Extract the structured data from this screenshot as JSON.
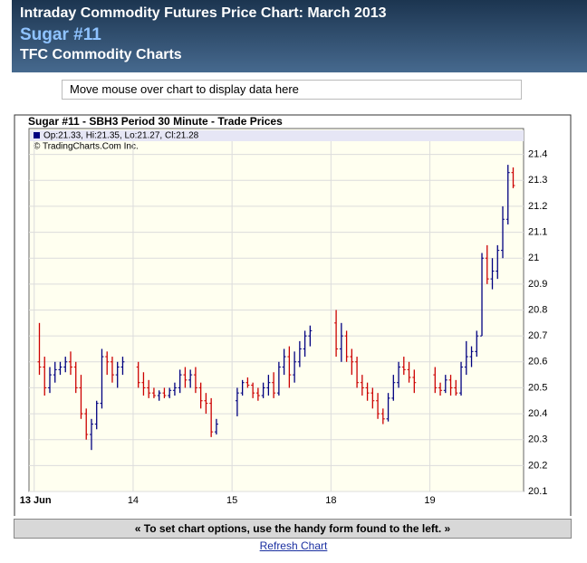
{
  "header": {
    "title": "Intraday Commodity Futures Price Chart: March 2013",
    "subtitle": "Sugar #11",
    "tagline": "TFC Commodity Charts"
  },
  "info_box": "Move mouse over chart to display data here",
  "chart_data": {
    "type": "ohlc",
    "title": "Sugar #11 - SBH3 Period 30 Minute - Trade Prices",
    "legend_text": "Op:21.33, Hi:21.35, Lo:21.27, Cl:21.28",
    "copyright": "© TradingCharts.Com Inc.",
    "x": [
      1,
      2,
      3,
      4,
      5,
      6,
      7,
      8,
      9,
      10,
      11,
      12,
      13,
      14,
      15,
      16,
      17,
      20,
      21,
      22,
      23,
      24,
      25,
      26,
      27,
      28,
      29,
      30,
      31,
      32,
      33,
      34,
      35,
      39,
      40,
      41,
      42,
      43,
      44,
      45,
      46,
      47,
      48,
      49,
      50,
      51,
      52,
      53,
      58,
      59,
      60,
      61,
      62,
      63,
      64,
      65,
      66,
      67,
      68,
      69,
      70,
      71,
      72,
      73,
      77,
      78,
      79,
      80,
      81,
      82,
      83,
      84,
      85,
      86,
      87,
      88,
      89,
      90,
      91,
      92
    ],
    "open": [
      20.6,
      20.58,
      20.5,
      20.55,
      20.57,
      20.58,
      20.6,
      20.58,
      20.5,
      20.4,
      20.32,
      20.36,
      20.44,
      20.62,
      20.6,
      20.55,
      20.58,
      20.58,
      20.52,
      20.5,
      20.48,
      20.47,
      20.48,
      20.47,
      20.49,
      20.5,
      20.55,
      20.53,
      20.55,
      20.5,
      20.45,
      20.44,
      20.33,
      20.45,
      20.48,
      20.52,
      20.51,
      20.48,
      20.47,
      20.5,
      20.52,
      20.48,
      20.58,
      20.62,
      20.55,
      20.6,
      20.65,
      20.7,
      20.75,
      20.65,
      20.7,
      20.62,
      20.6,
      20.52,
      20.5,
      20.48,
      20.45,
      20.4,
      20.38,
      20.46,
      20.52,
      20.58,
      20.57,
      20.54,
      20.55,
      20.5,
      20.49,
      20.53,
      20.5,
      20.48,
      20.58,
      20.62,
      20.64,
      20.7,
      21.0,
      20.92,
      20.95,
      21.03,
      21.15,
      21.33
    ],
    "high": [
      20.75,
      20.62,
      20.58,
      20.6,
      20.6,
      20.62,
      20.64,
      20.6,
      20.55,
      20.42,
      20.38,
      20.45,
      20.65,
      20.64,
      20.62,
      20.6,
      20.62,
      20.6,
      20.56,
      20.53,
      20.5,
      20.49,
      20.5,
      20.5,
      20.52,
      20.57,
      20.58,
      20.57,
      20.58,
      20.52,
      20.48,
      20.46,
      20.38,
      20.5,
      20.53,
      20.54,
      20.52,
      20.5,
      20.52,
      20.55,
      20.56,
      20.6,
      20.65,
      20.66,
      20.64,
      20.68,
      20.72,
      20.74,
      20.8,
      20.75,
      20.72,
      20.65,
      20.62,
      20.55,
      20.52,
      20.5,
      20.48,
      20.42,
      20.48,
      20.55,
      20.6,
      20.62,
      20.6,
      20.57,
      20.58,
      20.52,
      20.55,
      20.55,
      20.53,
      20.6,
      20.68,
      20.66,
      20.72,
      21.02,
      21.05,
      21.0,
      21.05,
      21.2,
      21.36,
      21.35
    ],
    "low": [
      20.55,
      20.47,
      20.48,
      20.52,
      20.55,
      20.56,
      20.55,
      20.48,
      20.38,
      20.3,
      20.26,
      20.34,
      20.42,
      20.55,
      20.52,
      20.5,
      20.55,
      20.5,
      20.47,
      20.46,
      20.46,
      20.45,
      20.46,
      20.46,
      20.47,
      20.48,
      20.5,
      20.5,
      20.48,
      20.42,
      20.4,
      20.31,
      20.32,
      20.39,
      20.47,
      20.5,
      20.46,
      20.45,
      20.46,
      20.47,
      20.46,
      20.47,
      20.55,
      20.5,
      20.52,
      20.58,
      20.62,
      20.66,
      20.62,
      20.6,
      20.6,
      20.55,
      20.5,
      20.47,
      20.45,
      20.42,
      20.38,
      20.36,
      20.37,
      20.45,
      20.5,
      20.55,
      20.52,
      20.48,
      20.48,
      20.47,
      20.48,
      20.47,
      20.47,
      20.47,
      20.55,
      20.58,
      20.62,
      20.7,
      20.9,
      20.88,
      20.92,
      21.0,
      21.13,
      21.27
    ],
    "close": [
      20.58,
      20.5,
      20.55,
      20.57,
      20.58,
      20.6,
      20.58,
      20.5,
      20.4,
      20.32,
      20.36,
      20.44,
      20.62,
      20.6,
      20.55,
      20.58,
      20.6,
      20.52,
      20.5,
      20.48,
      20.47,
      20.48,
      20.47,
      20.49,
      20.5,
      20.55,
      20.53,
      20.55,
      20.5,
      20.45,
      20.44,
      20.33,
      20.36,
      20.48,
      20.52,
      20.51,
      20.48,
      20.47,
      20.5,
      20.52,
      20.48,
      20.58,
      20.62,
      20.55,
      20.6,
      20.65,
      20.7,
      20.72,
      20.65,
      20.7,
      20.62,
      20.6,
      20.52,
      20.5,
      20.48,
      20.45,
      20.4,
      20.38,
      20.46,
      20.52,
      20.58,
      20.57,
      20.54,
      20.52,
      20.5,
      20.49,
      20.53,
      20.5,
      20.48,
      20.58,
      20.62,
      20.64,
      20.7,
      21.0,
      20.92,
      20.95,
      21.03,
      21.15,
      21.33,
      21.28
    ],
    "up_color": "#000080",
    "down_color": "#cc0000",
    "xlim": [
      -1,
      94
    ],
    "xticks": [
      {
        "value": 0,
        "label": "13 Jun"
      },
      {
        "value": 19,
        "label": "14"
      },
      {
        "value": 38,
        "label": "15"
      },
      {
        "value": 57,
        "label": "18"
      },
      {
        "value": 76,
        "label": "19"
      }
    ],
    "ylim": [
      20.1,
      21.5
    ],
    "yticks": [
      20.1,
      20.2,
      20.3,
      20.4,
      20.5,
      20.6,
      20.7,
      20.8,
      20.9,
      21,
      21.1,
      21.2,
      21.3,
      21.4
    ],
    "grid": true
  },
  "footer": {
    "options_note": "« To set chart options, use the handy form found to the left. »",
    "refresh": "Refresh Chart"
  }
}
